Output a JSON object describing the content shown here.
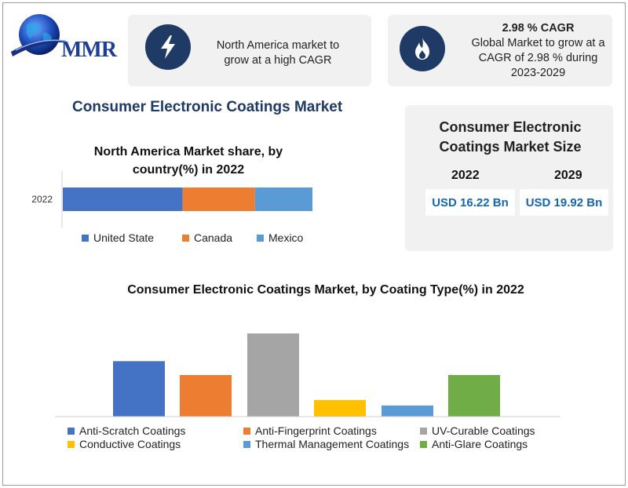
{
  "logo": {
    "text": "MMR"
  },
  "info_left": {
    "icon": "lightning-icon",
    "text": "North America market to grow at a high CAGR"
  },
  "info_right": {
    "icon": "flame-icon",
    "title": "2.98 % CAGR",
    "text": "Global Market to grow at a CAGR of 2.98 % during 2023-2029"
  },
  "main_title": "Consumer Electronic Coatings Market",
  "market_size": {
    "title": "Consumer Electronic Coatings Market Size",
    "year_a": "2022",
    "year_b": "2029",
    "value_a": "USD 16.22 Bn",
    "value_b": "USD 19.92 Bn"
  },
  "chart_data": [
    {
      "type": "bar",
      "orientation": "horizontal-stacked",
      "title": "North America Market share, by country(%) in 2022",
      "categories": [
        "2022"
      ],
      "series": [
        {
          "name": "United State",
          "values": [
            48
          ],
          "color": "#4472c4"
        },
        {
          "name": "Canada",
          "values": [
            29
          ],
          "color": "#ed7d31"
        },
        {
          "name": "Mexico",
          "values": [
            23
          ],
          "color": "#5b9bd5"
        }
      ],
      "legend": "bottom"
    },
    {
      "type": "bar",
      "title": "Consumer Electronic Coatings Market, by Coating Type(%) in 2022",
      "categories": [
        "Anti-Scratch Coatings",
        "Anti-Fingerprint Coatings",
        "UV-Curable Coatings",
        "Conductive Coatings",
        "Thermal Management Coatings",
        "Anti-Glare Coatings"
      ],
      "values": [
        20,
        15,
        30,
        6,
        4,
        15
      ],
      "colors": [
        "#4472c4",
        "#ed7d31",
        "#a5a5a5",
        "#ffc000",
        "#5b9bd5",
        "#70ad47"
      ],
      "ylim": [
        0,
        30
      ],
      "legend": "bottom"
    }
  ]
}
